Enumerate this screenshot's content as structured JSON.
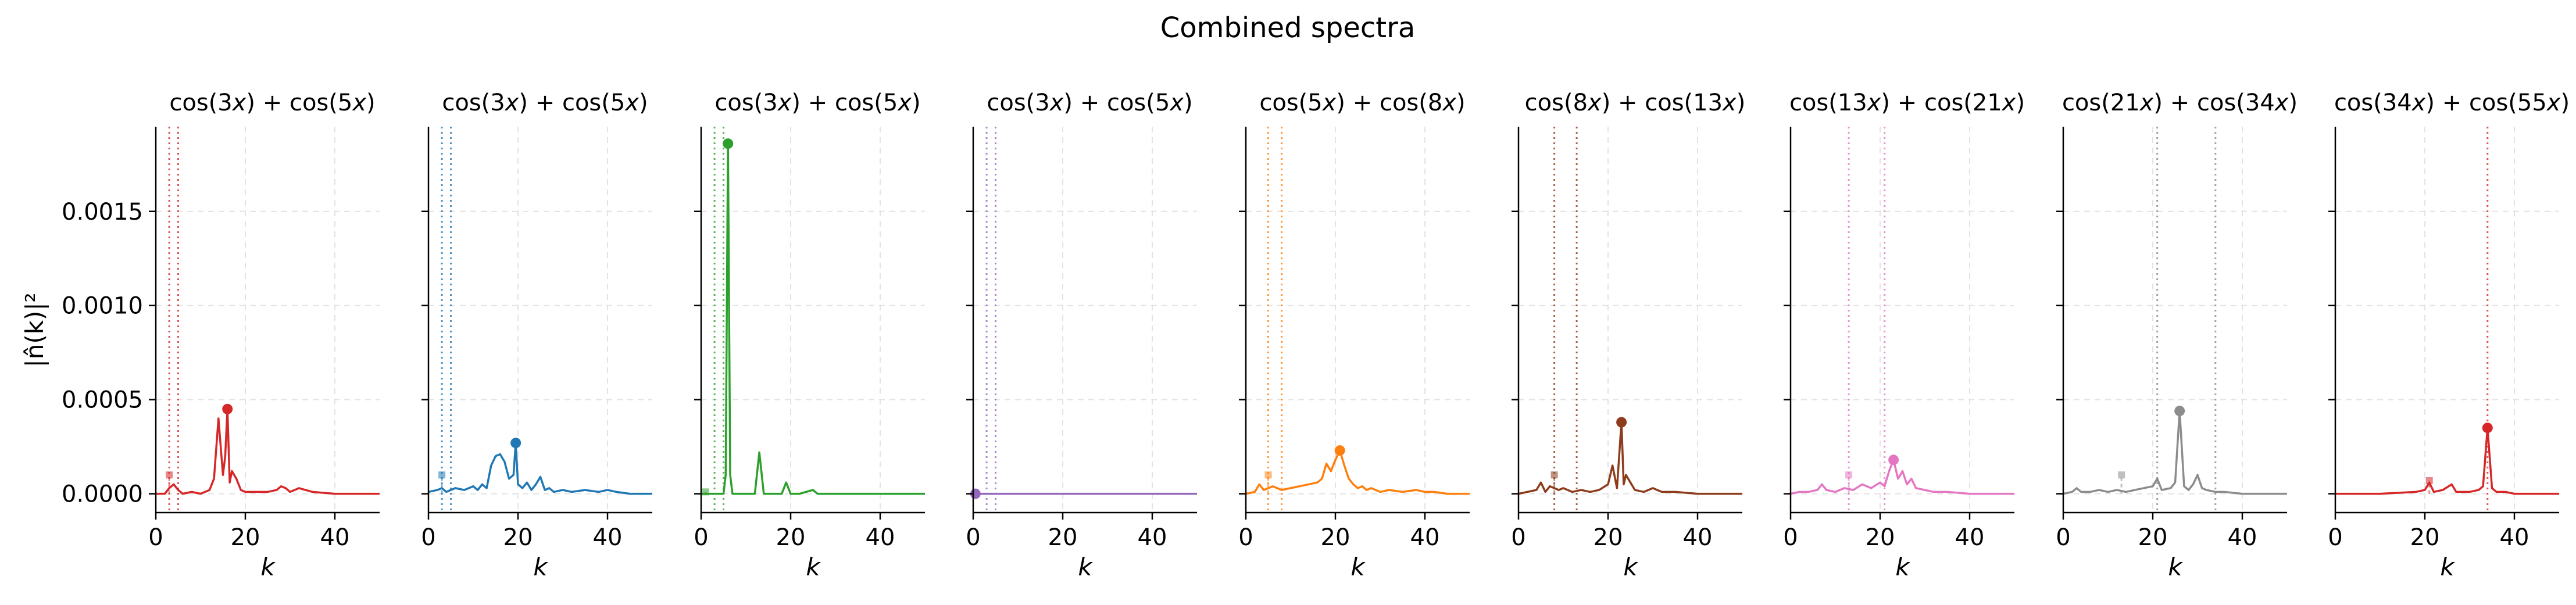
{
  "figure_title": "Combined spectra",
  "ylabel": "|n̂(k)|²",
  "xlabel": "k",
  "chart_data": [
    {
      "type": "line",
      "title_parts": [
        "cos(3",
        "x",
        ") + cos(5",
        "x",
        ")"
      ],
      "color": "#d62728",
      "xlim": [
        0,
        50
      ],
      "ylim": [
        -0.0001,
        0.00195
      ],
      "xticks": [
        "0",
        "20",
        "40"
      ],
      "xtick_values": [
        0,
        20,
        40
      ],
      "yticks": [
        "0.0000",
        "0.0005",
        "0.0010",
        "0.0015"
      ],
      "ytick_values": [
        0,
        0.0005,
        0.001,
        0.0015
      ],
      "vlines": [
        3,
        5
      ],
      "dashed_peak": {
        "x": 3,
        "y": 0.0001
      },
      "peak_marker": {
        "x": 16,
        "y": 0.00045
      },
      "series": [
        {
          "x": [
            0,
            2,
            3,
            4,
            5,
            6,
            8,
            10,
            12,
            13,
            14,
            15,
            15.5,
            16,
            16.5,
            17,
            18,
            19,
            20,
            22,
            25,
            27,
            28,
            29,
            30,
            32,
            35,
            40,
            45,
            50
          ],
          "y": [
            0,
            0,
            3e-05,
            5e-05,
            2e-05,
            0,
            1e-05,
            0,
            2e-05,
            8e-05,
            0.0004,
            0.0001,
            0.0002,
            0.00045,
            6e-05,
            0.00012,
            8e-05,
            2e-05,
            1e-05,
            1e-05,
            1e-05,
            2e-05,
            4e-05,
            3e-05,
            1e-05,
            3e-05,
            1e-05,
            0,
            0,
            0
          ]
        }
      ]
    },
    {
      "type": "line",
      "title_parts": [
        "cos(3",
        "x",
        ") + cos(5",
        "x",
        ")"
      ],
      "color": "#1f77b4",
      "xlim": [
        0,
        50
      ],
      "ylim": [
        -0.0001,
        0.00195
      ],
      "xticks": [
        "0",
        "20",
        "40"
      ],
      "xtick_values": [
        0,
        20,
        40
      ],
      "yticks": [
        "0.0000",
        "0.0005",
        "0.0010",
        "0.0015"
      ],
      "ytick_values": [
        0,
        0.0005,
        0.001,
        0.0015
      ],
      "vlines": [
        3,
        5
      ],
      "dashed_peak": {
        "x": 3,
        "y": 0.0001
      },
      "peak_marker": {
        "x": 19.5,
        "y": 0.00027
      },
      "series": [
        {
          "x": [
            0,
            2,
            3,
            4,
            6,
            8,
            10,
            11,
            12,
            13,
            14,
            15,
            16,
            17,
            18,
            19,
            19.5,
            20,
            21,
            22,
            23,
            24,
            25,
            26,
            27,
            28,
            30,
            32,
            35,
            38,
            40,
            42,
            45,
            50
          ],
          "y": [
            1e-05,
            2e-05,
            3e-05,
            1e-05,
            3e-05,
            2e-05,
            4e-05,
            2e-05,
            5e-05,
            3e-05,
            0.00015,
            0.0002,
            0.00021,
            0.00017,
            8e-05,
            0.0001,
            0.00027,
            5e-05,
            3e-05,
            6e-05,
            2e-05,
            5e-05,
            9e-05,
            2e-05,
            3e-05,
            1e-05,
            2e-05,
            1e-05,
            2e-05,
            1e-05,
            2e-05,
            1e-05,
            0,
            0
          ]
        }
      ]
    },
    {
      "type": "line",
      "title_parts": [
        "cos(3",
        "x",
        ") + cos(5",
        "x",
        ")"
      ],
      "color": "#2ca02c",
      "xlim": [
        0,
        50
      ],
      "ylim": [
        -0.0001,
        0.00195
      ],
      "xticks": [
        "0",
        "20",
        "40"
      ],
      "xtick_values": [
        0,
        20,
        40
      ],
      "yticks": [
        "0.0000",
        "0.0005",
        "0.0010",
        "0.0015"
      ],
      "ytick_values": [
        0,
        0.0005,
        0.001,
        0.0015
      ],
      "vlines": [
        3,
        5
      ],
      "dashed_peak": {
        "x": 1,
        "y": 1e-05
      },
      "peak_marker": {
        "x": 6,
        "y": 0.00186
      },
      "series": [
        {
          "x": [
            0,
            3,
            5,
            5.5,
            6,
            6.5,
            7,
            10,
            12,
            13,
            14,
            15,
            18,
            19,
            20,
            22,
            25,
            26,
            30,
            50
          ],
          "y": [
            0,
            0,
            0,
            0.0001,
            0.00186,
            0.0001,
            0,
            0,
            0,
            0.00022,
            0,
            0,
            0,
            6e-05,
            0,
            0,
            2e-05,
            0,
            0,
            0
          ]
        }
      ]
    },
    {
      "type": "line",
      "title_parts": [
        "cos(3",
        "x",
        ") + cos(5",
        "x",
        ")"
      ],
      "color": "#9467bd",
      "xlim": [
        0,
        50
      ],
      "ylim": [
        -0.0001,
        0.00195
      ],
      "xticks": [
        "0",
        "20",
        "40"
      ],
      "xtick_values": [
        0,
        20,
        40
      ],
      "yticks": [
        "0.0000",
        "0.0005",
        "0.0010",
        "0.0015"
      ],
      "ytick_values": [
        0,
        0.0005,
        0.001,
        0.0015
      ],
      "vlines": [
        3,
        5
      ],
      "dashed_peak": null,
      "peak_marker": {
        "x": 0.5,
        "y": 0
      },
      "series": [
        {
          "x": [
            0,
            50
          ],
          "y": [
            0,
            0
          ]
        }
      ]
    },
    {
      "type": "line",
      "title_parts": [
        "cos(5",
        "x",
        ") + cos(8",
        "x",
        ")"
      ],
      "color": "#ff7f0e",
      "xlim": [
        0,
        50
      ],
      "ylim": [
        -0.0001,
        0.00195
      ],
      "xticks": [
        "0",
        "20",
        "40"
      ],
      "xtick_values": [
        0,
        20,
        40
      ],
      "yticks": [
        "0.0000",
        "0.0005",
        "0.0010",
        "0.0015"
      ],
      "ytick_values": [
        0,
        0.0005,
        0.001,
        0.0015
      ],
      "vlines": [
        5,
        8
      ],
      "dashed_peak": {
        "x": 5,
        "y": 0.0001
      },
      "peak_marker": {
        "x": 21,
        "y": 0.00023
      },
      "series": [
        {
          "x": [
            0,
            2,
            3,
            4,
            6,
            8,
            10,
            12,
            14,
            16,
            17,
            18,
            19,
            20,
            21,
            22,
            23,
            24,
            25,
            26,
            27,
            28,
            30,
            32,
            35,
            38,
            40,
            42,
            45,
            50
          ],
          "y": [
            0,
            1e-05,
            5e-05,
            2e-05,
            4e-05,
            2e-05,
            3e-05,
            4e-05,
            5e-05,
            6e-05,
            8e-05,
            0.00016,
            0.00012,
            0.00018,
            0.00023,
            0.00015,
            8e-05,
            5e-05,
            3e-05,
            4e-05,
            2e-05,
            3e-05,
            1e-05,
            2e-05,
            1e-05,
            2e-05,
            1e-05,
            1e-05,
            0,
            0
          ]
        }
      ]
    },
    {
      "type": "line",
      "title_parts": [
        "cos(8",
        "x",
        ") + cos(13",
        "x",
        ")"
      ],
      "color": "#8c3c1c",
      "xlim": [
        0,
        50
      ],
      "ylim": [
        -0.0001,
        0.00195
      ],
      "xticks": [
        "0",
        "20",
        "40"
      ],
      "xtick_values": [
        0,
        20,
        40
      ],
      "yticks": [
        "0.0000",
        "0.0005",
        "0.0010",
        "0.0015"
      ],
      "ytick_values": [
        0,
        0.0005,
        0.001,
        0.0015
      ],
      "vlines": [
        8,
        13
      ],
      "dashed_peak": {
        "x": 8,
        "y": 0.0001
      },
      "peak_marker": {
        "x": 23,
        "y": 0.00038
      },
      "series": [
        {
          "x": [
            0,
            2,
            4,
            5,
            6,
            7,
            9,
            10,
            12,
            14,
            16,
            18,
            20,
            21,
            22,
            23,
            23.5,
            24,
            25,
            26,
            28,
            30,
            32,
            35,
            40,
            45,
            50
          ],
          "y": [
            0,
            1e-05,
            2e-05,
            6e-05,
            1e-05,
            4e-05,
            2e-05,
            3e-05,
            1e-05,
            2e-05,
            1e-05,
            2e-05,
            5e-05,
            0.00015,
            3e-05,
            0.00038,
            5e-05,
            0.0001,
            6e-05,
            2e-05,
            1e-05,
            3e-05,
            1e-05,
            1e-05,
            0,
            0,
            0
          ]
        }
      ]
    },
    {
      "type": "line",
      "title_parts": [
        "cos(13",
        "x",
        ") + cos(21",
        "x",
        ")"
      ],
      "color": "#e377c2",
      "xlim": [
        0,
        50
      ],
      "ylim": [
        -0.0001,
        0.00195
      ],
      "xticks": [
        "0",
        "20",
        "40"
      ],
      "xtick_values": [
        0,
        20,
        40
      ],
      "yticks": [
        "0.0000",
        "0.0005",
        "0.0010",
        "0.0015"
      ],
      "ytick_values": [
        0,
        0.0005,
        0.001,
        0.0015
      ],
      "vlines": [
        13,
        21
      ],
      "dashed_peak": {
        "x": 13,
        "y": 0.0001
      },
      "peak_marker": {
        "x": 23,
        "y": 0.00018
      },
      "series": [
        {
          "x": [
            0,
            2,
            4,
            6,
            7,
            8,
            10,
            12,
            14,
            16,
            18,
            20,
            21,
            22,
            23,
            24,
            25,
            26,
            27,
            28,
            30,
            32,
            35,
            40,
            45,
            50
          ],
          "y": [
            0,
            1e-05,
            1e-05,
            2e-05,
            5e-05,
            2e-05,
            1e-05,
            3e-05,
            2e-05,
            5e-05,
            3e-05,
            6e-05,
            4e-05,
            0.00012,
            0.00018,
            8e-05,
            0.00012,
            5e-05,
            8e-05,
            3e-05,
            2e-05,
            1e-05,
            1e-05,
            0,
            0,
            0
          ]
        }
      ]
    },
    {
      "type": "line",
      "title_parts": [
        "cos(21",
        "x",
        ") + cos(34",
        "x",
        ")"
      ],
      "color": "#8c8c8c",
      "xlim": [
        0,
        50
      ],
      "ylim": [
        -0.0001,
        0.00195
      ],
      "xticks": [
        "0",
        "20",
        "40"
      ],
      "xtick_values": [
        0,
        20,
        40
      ],
      "yticks": [
        "0.0000",
        "0.0005",
        "0.0010",
        "0.0015"
      ],
      "ytick_values": [
        0,
        0.0005,
        0.001,
        0.0015
      ],
      "vlines": [
        21,
        34
      ],
      "dashed_peak": {
        "x": 13,
        "y": 0.0001
      },
      "peak_marker": {
        "x": 26,
        "y": 0.00044
      },
      "series": [
        {
          "x": [
            0,
            2,
            3,
            4,
            6,
            8,
            10,
            12,
            14,
            16,
            18,
            20,
            21,
            22,
            24,
            25,
            26,
            27,
            28,
            29,
            30,
            31,
            32,
            34,
            36,
            40,
            45,
            50
          ],
          "y": [
            0,
            1e-05,
            3e-05,
            1e-05,
            1e-05,
            2e-05,
            1e-05,
            2e-05,
            1e-05,
            2e-05,
            3e-05,
            4e-05,
            8e-05,
            2e-05,
            3e-05,
            6e-05,
            0.00044,
            4e-05,
            2e-05,
            5e-05,
            0.0001,
            3e-05,
            2e-05,
            1e-05,
            1e-05,
            0,
            0,
            0
          ]
        }
      ]
    },
    {
      "type": "line",
      "title_parts": [
        "cos(34",
        "x",
        ") + cos(55",
        "x",
        ")"
      ],
      "color": "#d62728",
      "xlim": [
        0,
        50
      ],
      "ylim": [
        -0.0001,
        0.00195
      ],
      "xticks": [
        "0",
        "20",
        "40"
      ],
      "xtick_values": [
        0,
        20,
        40
      ],
      "yticks": [
        "0.0000",
        "0.0005",
        "0.0010",
        "0.0015"
      ],
      "ytick_values": [
        0,
        0.0005,
        0.001,
        0.0015
      ],
      "vlines": [
        34
      ],
      "dashed_peak": {
        "x": 21,
        "y": 7e-05
      },
      "peak_marker": {
        "x": 34,
        "y": 0.00035
      },
      "series": [
        {
          "x": [
            0,
            10,
            18,
            20,
            21,
            22,
            24,
            26,
            27,
            28,
            30,
            32,
            33,
            34,
            35,
            36,
            38,
            40,
            45,
            50
          ],
          "y": [
            0,
            0,
            1e-05,
            2e-05,
            6e-05,
            1e-05,
            2e-05,
            5e-05,
            1e-05,
            1e-05,
            1e-05,
            2e-05,
            4e-05,
            0.00035,
            3e-05,
            1e-05,
            1e-05,
            0,
            0,
            0
          ]
        }
      ]
    }
  ]
}
